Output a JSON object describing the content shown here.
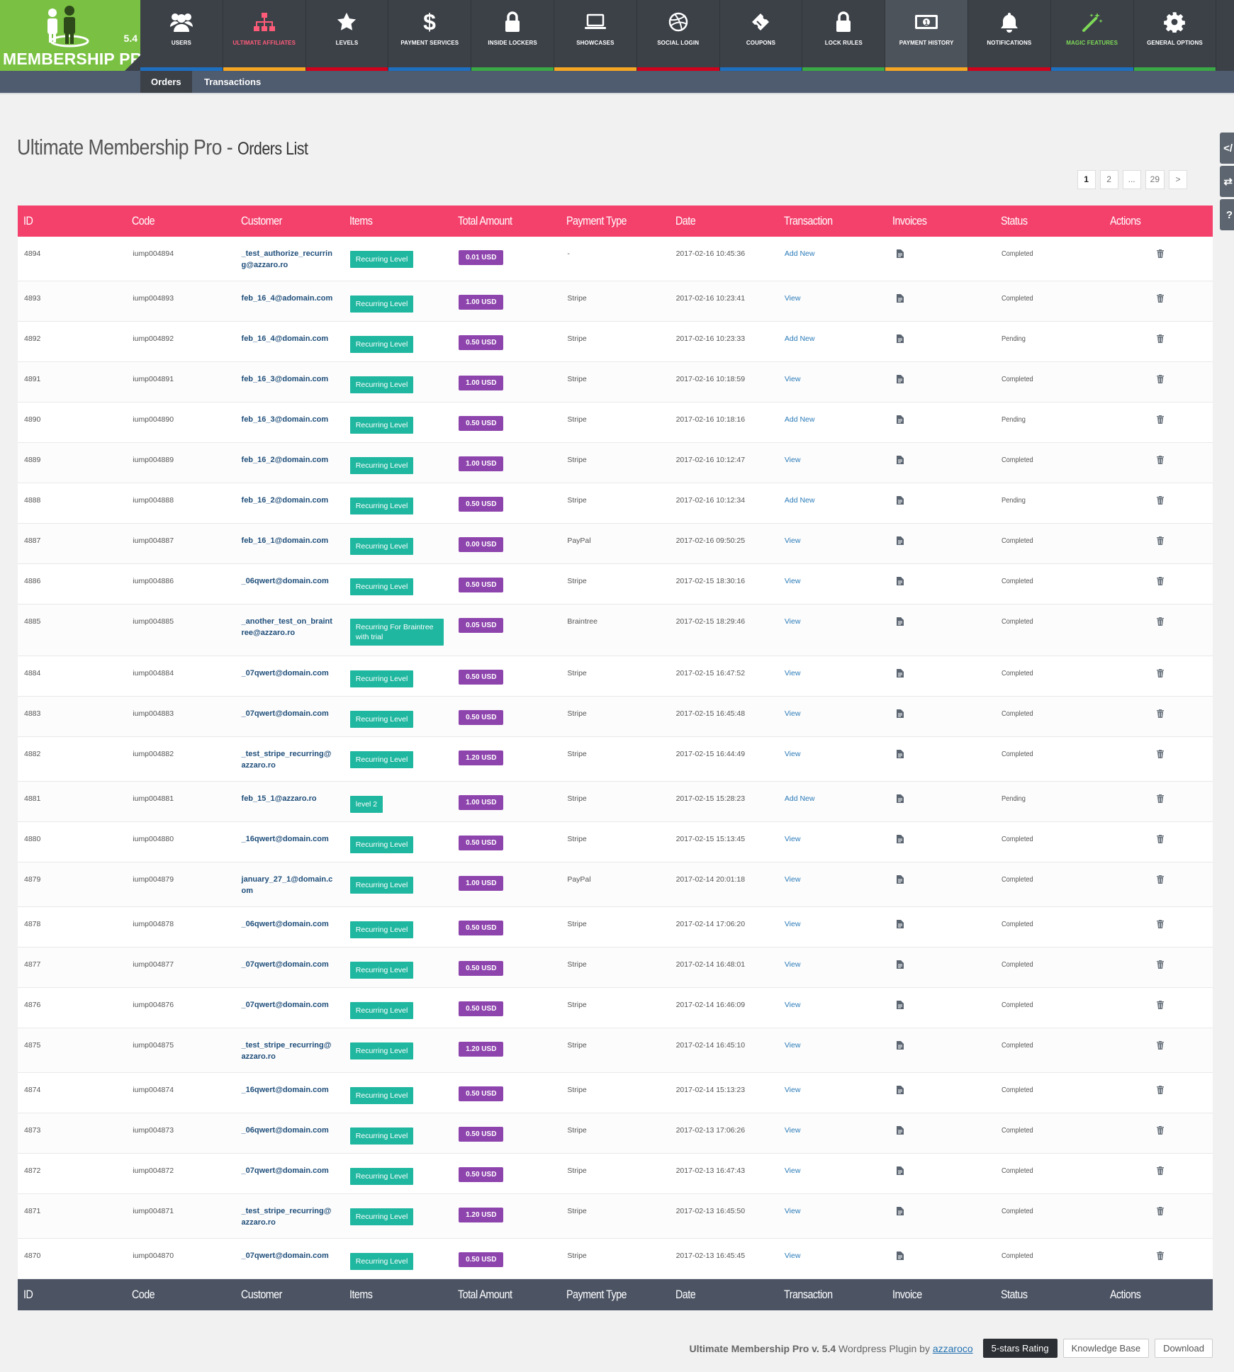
{
  "app": {
    "version": "5.4",
    "brand": "MEMBERSHIP PRO"
  },
  "menu": [
    {
      "label": "Users",
      "icon": "users-icon",
      "bar": "#1e6fbf",
      "color": "#ffffff"
    },
    {
      "label": "Ultimate Affiliates",
      "icon": "sitemap-icon",
      "bar": "#f5a623",
      "color": "#ff5b79"
    },
    {
      "label": "Levels",
      "icon": "star-icon",
      "bar": "#d0021b",
      "color": "#ffffff"
    },
    {
      "label": "Payment Services",
      "icon": "dollar-icon",
      "bar": "#1e6fbf",
      "color": "#ffffff"
    },
    {
      "label": "Inside Lockers",
      "icon": "lock-icon",
      "bar": "#3aa845",
      "color": "#ffffff"
    },
    {
      "label": "Showcases",
      "icon": "laptop-icon",
      "bar": "#f5a623",
      "color": "#ffffff"
    },
    {
      "label": "Social Login",
      "icon": "dribbble-icon",
      "bar": "#d0021b",
      "color": "#ffffff"
    },
    {
      "label": "Coupons",
      "icon": "ticket-icon",
      "bar": "#1e6fbf",
      "color": "#ffffff"
    },
    {
      "label": "Lock Rules",
      "icon": "lock-icon",
      "bar": "#3aa845",
      "color": "#ffffff"
    },
    {
      "label": "Payment History",
      "icon": "money-icon",
      "bar": "#f5a623",
      "color": "#ffffff",
      "active": true
    },
    {
      "label": "Notifications",
      "icon": "bell-icon",
      "bar": "#d0021b",
      "color": "#ffffff"
    },
    {
      "label": "Magic Features",
      "icon": "magic-wand-icon",
      "bar": "#1e6fbf",
      "color": "#7ed957"
    },
    {
      "label": "General Options",
      "icon": "gear-icon",
      "bar": "#3aa845",
      "color": "#ffffff"
    }
  ],
  "subtabs": {
    "orders": "Orders",
    "transactions": "Transactions"
  },
  "title": {
    "main": "Ultimate Membership Pro",
    "sep": " - ",
    "sub": "Orders List"
  },
  "side_tabs": [
    "</",
    "⇄",
    "?"
  ],
  "pagination": [
    "1",
    "2",
    "...",
    "29",
    ">"
  ],
  "table": {
    "headers": [
      "ID",
      "Code",
      "Customer",
      "Items",
      "Total Amount",
      "Payment Type",
      "Date",
      "Transaction",
      "Invoices",
      "Status",
      "Actions"
    ],
    "footers": [
      "ID",
      "Code",
      "Customer",
      "Items",
      "Total Amount",
      "Payment Type",
      "Date",
      "Transaction",
      "Invoice",
      "Status",
      "Actions"
    ],
    "rows": [
      {
        "id": "4894",
        "code": "iump004894",
        "customer": "_test_authorize_recurring@azzaro.ro",
        "item": "Recurring Level",
        "amount": "0.01 USD",
        "payment": "-",
        "date": "2017-02-16 10:45:36",
        "transaction": "Add New",
        "status": "Completed"
      },
      {
        "id": "4893",
        "code": "iump004893",
        "customer": "feb_16_4@adomain.com",
        "item": "Recurring Level",
        "amount": "1.00 USD",
        "payment": "Stripe",
        "date": "2017-02-16 10:23:41",
        "transaction": "View",
        "status": "Completed"
      },
      {
        "id": "4892",
        "code": "iump004892",
        "customer": "feb_16_4@domain.com",
        "item": "Recurring Level",
        "amount": "0.50 USD",
        "payment": "Stripe",
        "date": "2017-02-16 10:23:33",
        "transaction": "Add New",
        "status": "Pending"
      },
      {
        "id": "4891",
        "code": "iump004891",
        "customer": "feb_16_3@domain.com",
        "item": "Recurring Level",
        "amount": "1.00 USD",
        "payment": "Stripe",
        "date": "2017-02-16 10:18:59",
        "transaction": "View",
        "status": "Completed"
      },
      {
        "id": "4890",
        "code": "iump004890",
        "customer": "feb_16_3@domain.com",
        "item": "Recurring Level",
        "amount": "0.50 USD",
        "payment": "Stripe",
        "date": "2017-02-16 10:18:16",
        "transaction": "Add New",
        "status": "Pending"
      },
      {
        "id": "4889",
        "code": "iump004889",
        "customer": "feb_16_2@domain.com",
        "item": "Recurring Level",
        "amount": "1.00 USD",
        "payment": "Stripe",
        "date": "2017-02-16 10:12:47",
        "transaction": "View",
        "status": "Completed"
      },
      {
        "id": "4888",
        "code": "iump004888",
        "customer": "feb_16_2@domain.com",
        "item": "Recurring Level",
        "amount": "0.50 USD",
        "payment": "Stripe",
        "date": "2017-02-16 10:12:34",
        "transaction": "Add New",
        "status": "Pending"
      },
      {
        "id": "4887",
        "code": "iump004887",
        "customer": "feb_16_1@domain.com",
        "item": "Recurring Level",
        "amount": "0.00 USD",
        "payment": "PayPal",
        "date": "2017-02-16 09:50:25",
        "transaction": "View",
        "status": "Completed"
      },
      {
        "id": "4886",
        "code": "iump004886",
        "customer": "_06qwert@domain.com",
        "item": "Recurring Level",
        "amount": "0.50 USD",
        "payment": "Stripe",
        "date": "2017-02-15 18:30:16",
        "transaction": "View",
        "status": "Completed"
      },
      {
        "id": "4885",
        "code": "iump004885",
        "customer": "_another_test_on_braintree@azzaro.ro",
        "item": "Recurring For Braintree with trial",
        "amount": "0.05 USD",
        "payment": "Braintree",
        "date": "2017-02-15 18:29:46",
        "transaction": "View",
        "status": "Completed"
      },
      {
        "id": "4884",
        "code": "iump004884",
        "customer": "_07qwert@domain.com",
        "item": "Recurring Level",
        "amount": "0.50 USD",
        "payment": "Stripe",
        "date": "2017-02-15 16:47:52",
        "transaction": "View",
        "status": "Completed"
      },
      {
        "id": "4883",
        "code": "iump004883",
        "customer": "_07qwert@domain.com",
        "item": "Recurring Level",
        "amount": "0.50 USD",
        "payment": "Stripe",
        "date": "2017-02-15 16:45:48",
        "transaction": "View",
        "status": "Completed"
      },
      {
        "id": "4882",
        "code": "iump004882",
        "customer": "_test_stripe_recurring@azzaro.ro",
        "item": "Recurring Level",
        "amount": "1.20 USD",
        "payment": "Stripe",
        "date": "2017-02-15 16:44:49",
        "transaction": "View",
        "status": "Completed"
      },
      {
        "id": "4881",
        "code": "iump004881",
        "customer": "feb_15_1@azzaro.ro",
        "item": "level 2",
        "amount": "1.00 USD",
        "payment": "Stripe",
        "date": "2017-02-15 15:28:23",
        "transaction": "Add New",
        "status": "Pending"
      },
      {
        "id": "4880",
        "code": "iump004880",
        "customer": "_16qwert@domain.com",
        "item": "Recurring Level",
        "amount": "0.50 USD",
        "payment": "Stripe",
        "date": "2017-02-15 15:13:45",
        "transaction": "View",
        "status": "Completed"
      },
      {
        "id": "4879",
        "code": "iump004879",
        "customer": "january_27_1@domain.com",
        "item": "Recurring Level",
        "amount": "1.00 USD",
        "payment": "PayPal",
        "date": "2017-02-14 20:01:18",
        "transaction": "View",
        "status": "Completed"
      },
      {
        "id": "4878",
        "code": "iump004878",
        "customer": "_06qwert@domain.com",
        "item": "Recurring Level",
        "amount": "0.50 USD",
        "payment": "Stripe",
        "date": "2017-02-14 17:06:20",
        "transaction": "View",
        "status": "Completed"
      },
      {
        "id": "4877",
        "code": "iump004877",
        "customer": "_07qwert@domain.com",
        "item": "Recurring Level",
        "amount": "0.50 USD",
        "payment": "Stripe",
        "date": "2017-02-14 16:48:01",
        "transaction": "View",
        "status": "Completed"
      },
      {
        "id": "4876",
        "code": "iump004876",
        "customer": "_07qwert@domain.com",
        "item": "Recurring Level",
        "amount": "0.50 USD",
        "payment": "Stripe",
        "date": "2017-02-14 16:46:09",
        "transaction": "View",
        "status": "Completed"
      },
      {
        "id": "4875",
        "code": "iump004875",
        "customer": "_test_stripe_recurring@azzaro.ro",
        "item": "Recurring Level",
        "amount": "1.20 USD",
        "payment": "Stripe",
        "date": "2017-02-14 16:45:10",
        "transaction": "View",
        "status": "Completed"
      },
      {
        "id": "4874",
        "code": "iump004874",
        "customer": "_16qwert@domain.com",
        "item": "Recurring Level",
        "amount": "0.50 USD",
        "payment": "Stripe",
        "date": "2017-02-14 15:13:23",
        "transaction": "View",
        "status": "Completed"
      },
      {
        "id": "4873",
        "code": "iump004873",
        "customer": "_06qwert@domain.com",
        "item": "Recurring Level",
        "amount": "0.50 USD",
        "payment": "Stripe",
        "date": "2017-02-13 17:06:26",
        "transaction": "View",
        "status": "Completed"
      },
      {
        "id": "4872",
        "code": "iump004872",
        "customer": "_07qwert@domain.com",
        "item": "Recurring Level",
        "amount": "0.50 USD",
        "payment": "Stripe",
        "date": "2017-02-13 16:47:43",
        "transaction": "View",
        "status": "Completed"
      },
      {
        "id": "4871",
        "code": "iump004871",
        "customer": "_test_stripe_recurring@azzaro.ro",
        "item": "Recurring Level",
        "amount": "1.20 USD",
        "payment": "Stripe",
        "date": "2017-02-13 16:45:50",
        "transaction": "View",
        "status": "Completed"
      },
      {
        "id": "4870",
        "code": "iump004870",
        "customer": "_07qwert@domain.com",
        "item": "Recurring Level",
        "amount": "0.50 USD",
        "payment": "Stripe",
        "date": "2017-02-13 16:45:45",
        "transaction": "View",
        "status": "Completed"
      }
    ]
  },
  "footer": {
    "product": "Ultimate Membership Pro v. 5.4",
    "text": " Wordpress Plugin by ",
    "author": "azzaroco",
    "rating": "5-stars Rating",
    "kb": "Knowledge Base",
    "download": "Download"
  }
}
